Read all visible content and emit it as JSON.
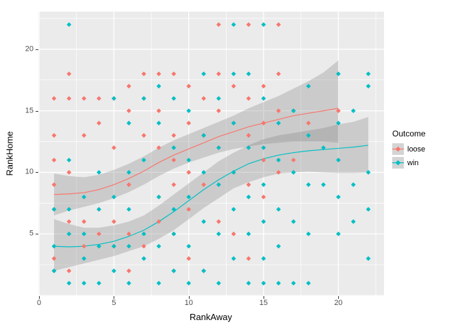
{
  "figure": {
    "background": "#FFFFFF",
    "panel_background": "#EBEBEB",
    "grid_color": "#FFFFFF",
    "tick_color": "#333333",
    "tick_label_color": "#4D4D4D"
  },
  "axes": {
    "x": {
      "title": "RankAway",
      "tick_labels": [
        0,
        5,
        10,
        15,
        20
      ]
    },
    "y": {
      "title": "RankHome",
      "tick_labels": [
        5,
        10,
        15,
        20
      ]
    }
  },
  "legend": {
    "title": "Outcome",
    "items": [
      {
        "label": "loose",
        "color": "#F8766D"
      },
      {
        "label": "win",
        "color": "#00BFC4"
      }
    ]
  },
  "chart_data": {
    "type": "scatter",
    "title": "",
    "xlabel": "RankAway",
    "ylabel": "RankHome",
    "xlim": [
      -0.05,
      23.05
    ],
    "ylim": [
      -0.05,
      23.05
    ],
    "legend_position": "right",
    "point_shape": "diamond",
    "ribbon_color": "#808080",
    "ribbon_opacity": 0.3,
    "grid": {
      "major_x": [
        0,
        5,
        10,
        15,
        20
      ],
      "major_y": [
        0,
        5,
        10,
        15,
        20
      ],
      "minor_x": [
        2.5,
        7.5,
        12.5,
        17.5,
        22.5
      ],
      "minor_y": [
        2.5,
        7.5,
        12.5,
        17.5,
        22.5
      ]
    },
    "series": [
      {
        "name": "loose",
        "color": "#F8766D",
        "points": [
          [
            1,
            16
          ],
          [
            1,
            13
          ],
          [
            1,
            11
          ],
          [
            1,
            9
          ],
          [
            1,
            7
          ],
          [
            1,
            3
          ],
          [
            1,
            2
          ],
          [
            2,
            18
          ],
          [
            2,
            16
          ],
          [
            2,
            10
          ],
          [
            2,
            6
          ],
          [
            2,
            2
          ],
          [
            3,
            16
          ],
          [
            3,
            13
          ],
          [
            3,
            6
          ],
          [
            3,
            4
          ],
          [
            4,
            16
          ],
          [
            4,
            14
          ],
          [
            4,
            7
          ],
          [
            4,
            5
          ],
          [
            5,
            16
          ],
          [
            5,
            12
          ],
          [
            5,
            6
          ],
          [
            5,
            4
          ],
          [
            6,
            17
          ],
          [
            6,
            15
          ],
          [
            6,
            9
          ],
          [
            6,
            5
          ],
          [
            6,
            2
          ],
          [
            7,
            18
          ],
          [
            7,
            16
          ],
          [
            7,
            13
          ],
          [
            7,
            4
          ],
          [
            8,
            18
          ],
          [
            8,
            15
          ],
          [
            8,
            12
          ],
          [
            8,
            8
          ],
          [
            8,
            6
          ],
          [
            9,
            18
          ],
          [
            9,
            13
          ],
          [
            9,
            11
          ],
          [
            9,
            9
          ],
          [
            9,
            5
          ],
          [
            9,
            2
          ],
          [
            10,
            17
          ],
          [
            10,
            14
          ],
          [
            10,
            10
          ],
          [
            10,
            7
          ],
          [
            10,
            3
          ],
          [
            11,
            16
          ],
          [
            11,
            13
          ],
          [
            11,
            9
          ],
          [
            11,
            2
          ],
          [
            12,
            22
          ],
          [
            12,
            18
          ],
          [
            12,
            15
          ],
          [
            12,
            12
          ],
          [
            12,
            6
          ],
          [
            13,
            17
          ],
          [
            13,
            14
          ],
          [
            13,
            10
          ],
          [
            13,
            5
          ],
          [
            14,
            22
          ],
          [
            14,
            16
          ],
          [
            14,
            13
          ],
          [
            14,
            9
          ],
          [
            14,
            3
          ],
          [
            15,
            17
          ],
          [
            15,
            14
          ],
          [
            15,
            11
          ],
          [
            15,
            8
          ],
          [
            16,
            22
          ],
          [
            16,
            18
          ],
          [
            16,
            15
          ],
          [
            16,
            10
          ],
          [
            17,
            15
          ],
          [
            17,
            11
          ],
          [
            18,
            14
          ],
          [
            20,
            15
          ]
        ],
        "smooth": {
          "x": [
            1,
            2,
            3,
            4,
            5,
            6,
            7,
            8,
            9,
            10,
            11,
            12,
            13,
            14,
            15,
            16,
            17,
            18,
            19,
            20
          ],
          "y": [
            8.2,
            8.25,
            8.35,
            8.6,
            9.0,
            9.5,
            10.1,
            10.8,
            11.4,
            11.9,
            12.4,
            12.9,
            13.3,
            13.7,
            14.0,
            14.3,
            14.6,
            14.8,
            15.0,
            15.2
          ],
          "lower": [
            6.5,
            6.9,
            7.2,
            7.5,
            7.9,
            8.4,
            9.0,
            9.7,
            10.3,
            10.8,
            11.2,
            11.6,
            11.9,
            12.1,
            12.3,
            12.4,
            12.5,
            12.5,
            12.5,
            12.4
          ],
          "upper": [
            9.9,
            9.7,
            9.6,
            9.8,
            10.2,
            10.7,
            11.3,
            12.0,
            12.6,
            13.1,
            13.6,
            14.1,
            14.6,
            15.2,
            15.7,
            16.2,
            16.8,
            17.4,
            18.1,
            19.1
          ]
        }
      },
      {
        "name": "win",
        "color": "#00BFC4",
        "points": [
          [
            1,
            7
          ],
          [
            1,
            4
          ],
          [
            1,
            2
          ],
          [
            2,
            22
          ],
          [
            2,
            11
          ],
          [
            2,
            7
          ],
          [
            2,
            5
          ],
          [
            2,
            1
          ],
          [
            3,
            8
          ],
          [
            3,
            5
          ],
          [
            3,
            3
          ],
          [
            3,
            1
          ],
          [
            4,
            10
          ],
          [
            4,
            7
          ],
          [
            4,
            4
          ],
          [
            4,
            1
          ],
          [
            5,
            16
          ],
          [
            5,
            8
          ],
          [
            5,
            4
          ],
          [
            5,
            2
          ],
          [
            6,
            14
          ],
          [
            6,
            10
          ],
          [
            6,
            7
          ],
          [
            6,
            4
          ],
          [
            6,
            1
          ],
          [
            7,
            16
          ],
          [
            7,
            11
          ],
          [
            7,
            5
          ],
          [
            7,
            3
          ],
          [
            8,
            17
          ],
          [
            8,
            14
          ],
          [
            8,
            8
          ],
          [
            8,
            4
          ],
          [
            8,
            1
          ],
          [
            9,
            16
          ],
          [
            9,
            12
          ],
          [
            9,
            7
          ],
          [
            9,
            5
          ],
          [
            9,
            2
          ],
          [
            10,
            15
          ],
          [
            10,
            11
          ],
          [
            10,
            8
          ],
          [
            10,
            4
          ],
          [
            10,
            1
          ],
          [
            11,
            18
          ],
          [
            11,
            13
          ],
          [
            11,
            10
          ],
          [
            11,
            6
          ],
          [
            11,
            2
          ],
          [
            12,
            16
          ],
          [
            12,
            12
          ],
          [
            12,
            9
          ],
          [
            12,
            5
          ],
          [
            12,
            1
          ],
          [
            13,
            22
          ],
          [
            13,
            18
          ],
          [
            13,
            14
          ],
          [
            13,
            10
          ],
          [
            13,
            7
          ],
          [
            13,
            3
          ],
          [
            14,
            18
          ],
          [
            14,
            12
          ],
          [
            14,
            8
          ],
          [
            14,
            5
          ],
          [
            14,
            1
          ],
          [
            15,
            22
          ],
          [
            15,
            16
          ],
          [
            15,
            12
          ],
          [
            15,
            9
          ],
          [
            15,
            6
          ],
          [
            15,
            3
          ],
          [
            15,
            1
          ],
          [
            16,
            14
          ],
          [
            16,
            11
          ],
          [
            16,
            7
          ],
          [
            16,
            4
          ],
          [
            16,
            1
          ],
          [
            17,
            15
          ],
          [
            17,
            10
          ],
          [
            17,
            6
          ],
          [
            17,
            1
          ],
          [
            18,
            17
          ],
          [
            18,
            13
          ],
          [
            18,
            9
          ],
          [
            18,
            5
          ],
          [
            18,
            1
          ],
          [
            19,
            12
          ],
          [
            19,
            9
          ],
          [
            20,
            18
          ],
          [
            20,
            14
          ],
          [
            20,
            11
          ],
          [
            20,
            8
          ],
          [
            20,
            5
          ],
          [
            21,
            15
          ],
          [
            21,
            9
          ],
          [
            21,
            6
          ],
          [
            22,
            18
          ],
          [
            22,
            17
          ],
          [
            22,
            10
          ],
          [
            22,
            7
          ],
          [
            22,
            3
          ]
        ],
        "smooth": {
          "x": [
            1,
            2,
            3,
            4,
            5,
            6,
            7,
            8,
            9,
            10,
            11,
            12,
            13,
            14,
            15,
            16,
            17,
            18,
            19,
            20,
            21,
            22
          ],
          "y": [
            4.0,
            3.95,
            4.0,
            4.15,
            4.4,
            4.8,
            5.3,
            6.0,
            6.8,
            7.7,
            8.6,
            9.4,
            10.1,
            10.7,
            11.1,
            11.4,
            11.6,
            11.75,
            11.85,
            11.95,
            12.05,
            12.2
          ],
          "lower": [
            2.0,
            2.3,
            2.6,
            2.9,
            3.2,
            3.6,
            4.0,
            4.6,
            5.3,
            6.2,
            7.1,
            7.9,
            8.7,
            9.2,
            9.6,
            9.9,
            10.0,
            10.05,
            10.0,
            9.95,
            9.95,
            10.0
          ],
          "upper": [
            6.2,
            5.8,
            5.5,
            5.5,
            5.7,
            6.0,
            6.5,
            7.3,
            8.2,
            9.1,
            10.0,
            10.9,
            11.6,
            12.2,
            12.7,
            13.0,
            13.2,
            13.4,
            13.6,
            13.9,
            14.1,
            14.5
          ]
        }
      }
    ]
  }
}
